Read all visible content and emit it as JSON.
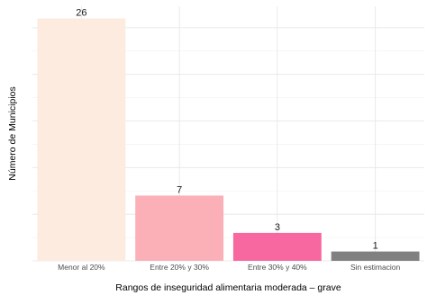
{
  "chart_data": {
    "type": "bar",
    "title": "",
    "xlabel": "Rangos de inseguridad alimentaria moderada – grave",
    "ylabel": "Número de Municipios",
    "categories": [
      "Menor al 20%",
      "Entre 20% y 30%",
      "Entre 30% y 40%",
      "Sin estimacion"
    ],
    "values": [
      26,
      7,
      3,
      1
    ],
    "data_labels": [
      "26",
      "7",
      "3",
      "1"
    ],
    "colors": [
      "#fdebe0",
      "#fbb0b8",
      "#f768a0",
      "#808080"
    ],
    "ylim": [
      0,
      27.3
    ],
    "y_tick_labels_shown": false,
    "grid": true,
    "legend": "none"
  }
}
